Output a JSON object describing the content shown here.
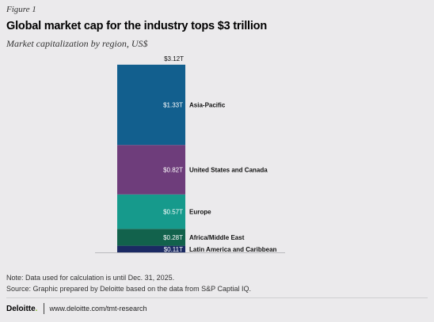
{
  "figure_label": "Figure 1",
  "title": "Global market cap for the industry tops $3 trillion",
  "subtitle": "Market capitalization by region, US$",
  "chart_data": {
    "type": "bar",
    "stacked": true,
    "total_label": "$3.12T",
    "total": 3.12,
    "series": [
      {
        "name": "Latin America and Caribbean",
        "value": 0.11,
        "label": "$0.11T",
        "color": "#1b2a63"
      },
      {
        "name": "Africa/Middle East",
        "value": 0.28,
        "label": "$0.28T",
        "color": "#12624c"
      },
      {
        "name": "Europe",
        "value": 0.57,
        "label": "$0.57T",
        "color": "#169a8c"
      },
      {
        "name": "United States and Canada",
        "value": 0.82,
        "label": "$0.82T",
        "color": "#6e3d7b"
      },
      {
        "name": "Asia-Pacific",
        "value": 1.33,
        "label": "$1.33T",
        "color": "#125f8e"
      }
    ]
  },
  "notes": {
    "note": "Note: Data used for calculation is until Dec. 31, 2025.",
    "source": "Source: Graphic prepared by Deloitte based on the data from S&P Captial IQ."
  },
  "footer": {
    "logo": "Deloitte",
    "logo_dot": ".",
    "url": "www.deloitte.com/tmt-research"
  }
}
